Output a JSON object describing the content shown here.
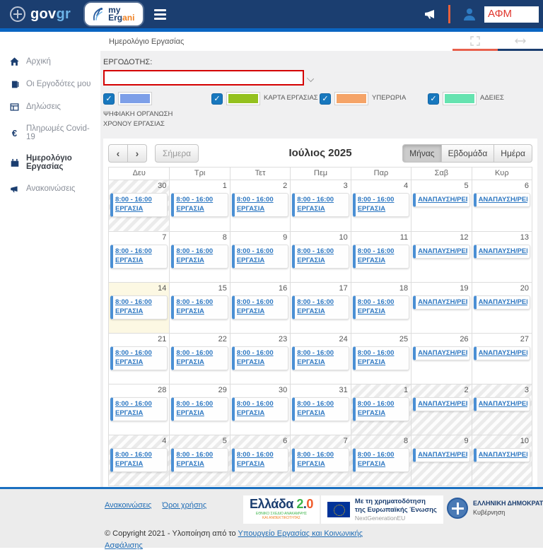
{
  "ui": {
    "check_glyph": "✓"
  },
  "header": {
    "gov_logo": {
      "gov": "gov",
      "gr": "gr"
    },
    "ergani_logo": {
      "line1": "my",
      "line2_a": "Erg",
      "line2_b": "ani"
    },
    "afm_value": "ΑΦΜ"
  },
  "breadcrumb": {
    "title": "Ημερολόγιο Εργασίας"
  },
  "sidebar": {
    "items": [
      {
        "id": "home",
        "label": "Αρχική",
        "icon": "home-icon",
        "active": false
      },
      {
        "id": "employers",
        "label": "Οι Εργοδότες μου",
        "icon": "employers-icon",
        "active": false
      },
      {
        "id": "declarations",
        "label": "Δηλώσεις",
        "icon": "declarations-icon",
        "active": false
      },
      {
        "id": "covid-payments",
        "label": "Πληρωμές Covid-19",
        "icon": "euro-icon",
        "active": false
      },
      {
        "id": "work-calendar",
        "label": "Ημερολόγιο Εργασίας",
        "icon": "calendar-icon",
        "active": true
      },
      {
        "id": "announcements",
        "label": "Ανακοινώσεις",
        "icon": "megaphone-icon",
        "active": false
      }
    ]
  },
  "filters": {
    "employer_label": "ΕΡΓΟΔΟΤΗΣ:",
    "employer_value": "",
    "legend": [
      {
        "label": "ΨΗΦΙΑΚΗ ΟΡΓΑΝΩΣΗ ΧΡΟΝΟΥ ΕΡΓΑΣΙΑΣ",
        "color": "#7d9fe8",
        "checked": true,
        "wrap": true
      },
      {
        "label": "ΚΑΡΤΑ ΕΡΓΑΣΙΑΣ",
        "color": "#94c11e",
        "checked": true,
        "wrap": false
      },
      {
        "label": "ΥΠΕΡΩΡΙΑ",
        "color": "#f5a468",
        "checked": true,
        "wrap": false
      },
      {
        "label": "ΑΔΕΙΕΣ",
        "color": "#66e3b0",
        "checked": true,
        "wrap": false
      }
    ]
  },
  "calendar": {
    "title": "Ιούλιος 2025",
    "nav": {
      "prev": "‹",
      "next": "›"
    },
    "today_label": "Σήμερα",
    "views": [
      {
        "label": "Μήνας",
        "active": true
      },
      {
        "label": "Εβδομάδα",
        "active": false
      },
      {
        "label": "Ημέρα",
        "active": false
      }
    ],
    "day_headers": [
      "Δευ",
      "Τρι",
      "Τετ",
      "Πεμ",
      "Παρ",
      "Σαβ",
      "Κυρ"
    ],
    "events": {
      "work": {
        "time": "8:00 - 16:00",
        "title": "ΕΡΓΑΣΙΑ"
      },
      "rest": {
        "title": "ΑΝΑΠΑΥΣΗ/ΡΕΠΟ"
      }
    },
    "weeks": [
      [
        {
          "day": "30",
          "other": true,
          "type": "work"
        },
        {
          "day": "1",
          "type": "work"
        },
        {
          "day": "2",
          "type": "work"
        },
        {
          "day": "3",
          "type": "work"
        },
        {
          "day": "4",
          "type": "work"
        },
        {
          "day": "5",
          "type": "rest"
        },
        {
          "day": "6",
          "type": "rest"
        }
      ],
      [
        {
          "day": "7",
          "type": "work"
        },
        {
          "day": "8",
          "type": "work"
        },
        {
          "day": "9",
          "type": "work"
        },
        {
          "day": "10",
          "type": "work"
        },
        {
          "day": "11",
          "type": "work"
        },
        {
          "day": "12",
          "type": "rest"
        },
        {
          "day": "13",
          "type": "rest"
        }
      ],
      [
        {
          "day": "14",
          "today": true,
          "type": "work"
        },
        {
          "day": "15",
          "type": "work"
        },
        {
          "day": "16",
          "type": "work"
        },
        {
          "day": "17",
          "type": "work"
        },
        {
          "day": "18",
          "type": "work"
        },
        {
          "day": "19",
          "type": "rest"
        },
        {
          "day": "20",
          "type": "rest"
        }
      ],
      [
        {
          "day": "21",
          "type": "work"
        },
        {
          "day": "22",
          "type": "work"
        },
        {
          "day": "23",
          "type": "work"
        },
        {
          "day": "24",
          "type": "work"
        },
        {
          "day": "25",
          "type": "work"
        },
        {
          "day": "26",
          "type": "rest"
        },
        {
          "day": "27",
          "type": "rest"
        }
      ],
      [
        {
          "day": "28",
          "type": "work"
        },
        {
          "day": "29",
          "type": "work"
        },
        {
          "day": "30",
          "type": "work"
        },
        {
          "day": "31",
          "type": "work"
        },
        {
          "day": "1",
          "other": true,
          "type": "work"
        },
        {
          "day": "2",
          "other": true,
          "type": "rest"
        },
        {
          "day": "3",
          "other": true,
          "type": "rest"
        }
      ],
      [
        {
          "day": "4",
          "other": true,
          "type": "work"
        },
        {
          "day": "5",
          "other": true,
          "type": "work"
        },
        {
          "day": "6",
          "other": true,
          "type": "work"
        },
        {
          "day": "7",
          "other": true,
          "type": "work"
        },
        {
          "day": "8",
          "other": true,
          "type": "work"
        },
        {
          "day": "9",
          "other": true,
          "type": "rest"
        },
        {
          "day": "10",
          "other": true,
          "type": "rest"
        }
      ]
    ]
  },
  "footer": {
    "links": [
      {
        "label": "Ανακοινώσεις"
      },
      {
        "label": "Όροι χρήσης"
      }
    ],
    "greece20": {
      "name": "Ελλάδα",
      "v2": "2",
      "dot": ".",
      "v0": "0",
      "sub1": "ΕΘΝΙΚΟ ΣΧΕΔΙΟ ΑΝΑΚΑΜΨΗΣ",
      "sub2": "ΚΑΙ ΑΝΘΕΚΤΙΚΟΤΗΤΑΣ"
    },
    "eu": {
      "line1": "Με τη χρηματοδότηση",
      "line2": "της Ευρωπαϊκής Ένωσης",
      "line3": "NextGenerationEU"
    },
    "gov": {
      "line1": "ΕΛΛΗΝΙΚΗ ΔΗΜΟΚΡΑΤΙΑ",
      "line2": "Κυβέρνηση"
    },
    "copyright_text": "© Copyright 2021 - Υλοποίηση από το ",
    "copyright_link": "Υπουργείο Εργασίας και Κοινωνικής Ασφάλισης"
  }
}
